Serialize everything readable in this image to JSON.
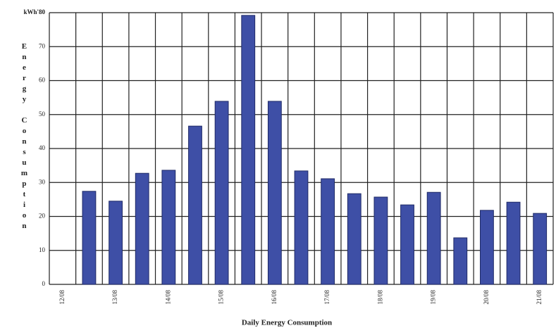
{
  "chart_data": {
    "type": "bar",
    "title": "Daily Energy Consumption",
    "y_label": "Energy Consumption",
    "categories": [
      "12/08",
      null,
      "13/08",
      null,
      "14/08",
      null,
      "15/08",
      null,
      "16/08",
      null,
      "17/08",
      null,
      "18/08",
      null,
      "19/08",
      null,
      "20/08",
      null,
      "21/08"
    ],
    "values": [
      null,
      27.4,
      24.5,
      32.7,
      33.6,
      46.6,
      53.9,
      79.2,
      53.9,
      33.4,
      31.1,
      26.7,
      25.7,
      23.4,
      27.1,
      13.7,
      21.8,
      24.2,
      20.9
    ],
    "color": "#3e4fa6",
    "ylim": [
      0,
      80
    ],
    "yticks": [
      0,
      10,
      20,
      30,
      40,
      50,
      60,
      70,
      {
        "value": 80,
        "label": "kWh'80"
      }
    ],
    "grid": true
  }
}
